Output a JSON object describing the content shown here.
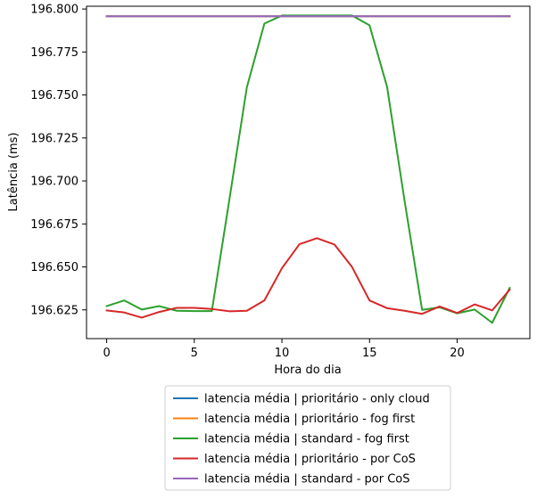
{
  "chart_data": {
    "type": "line",
    "title": "",
    "xlabel": "Hora do dia",
    "ylabel": "Latência (ms)",
    "xlim": [
      -1.15,
      24.15
    ],
    "ylim": [
      196.6083,
      196.8016
    ],
    "xticks": [
      0,
      5,
      10,
      15,
      20
    ],
    "yticks": [
      196.625,
      196.65,
      196.675,
      196.7,
      196.725,
      196.75,
      196.775,
      196.8
    ],
    "ytick_labels": [
      "196.625",
      "196.650",
      "196.675",
      "196.700",
      "196.725",
      "196.750",
      "196.775",
      "196.800"
    ],
    "grid": false,
    "legend_placement": "below",
    "x": [
      0,
      1,
      2,
      3,
      4,
      5,
      6,
      7,
      8,
      9,
      10,
      11,
      12,
      13,
      14,
      15,
      16,
      17,
      18,
      19,
      20,
      21,
      22,
      23
    ],
    "series": [
      {
        "name": "latencia média | prioritário - only cloud",
        "color": "#1f77b4",
        "values": [
          196.7958,
          196.7958,
          196.7958,
          196.7958,
          196.7958,
          196.7958,
          196.7958,
          196.7958,
          196.7958,
          196.7958,
          196.7958,
          196.7958,
          196.7958,
          196.7958,
          196.7958,
          196.7958,
          196.7958,
          196.7958,
          196.7958,
          196.7958,
          196.7958,
          196.7958,
          196.7958,
          196.7958
        ]
      },
      {
        "name": "latencia média | prioritário - fog first",
        "color": "#ff7f0e",
        "values": [
          196.7958,
          196.7958,
          196.7958,
          196.7958,
          196.7958,
          196.7958,
          196.7958,
          196.7958,
          196.7958,
          196.7958,
          196.7958,
          196.7958,
          196.7958,
          196.7958,
          196.7958,
          196.7958,
          196.7958,
          196.7958,
          196.7958,
          196.7958,
          196.7958,
          196.7958,
          196.7958,
          196.7958
        ]
      },
      {
        "name": "latencia média | standard - fog first",
        "color": "#2ca02c",
        "values": [
          196.6272,
          196.6305,
          196.6252,
          196.6272,
          196.6245,
          196.6243,
          196.6243,
          196.689,
          196.7545,
          196.7915,
          196.7962,
          196.7962,
          196.7962,
          196.7962,
          196.7962,
          196.7905,
          196.7548,
          196.6885,
          196.625,
          196.6265,
          196.623,
          196.6252,
          196.6175,
          196.6378
        ]
      },
      {
        "name": "latencia média | prioritário - por CoS",
        "color": "#d62728",
        "values": [
          196.6247,
          196.6235,
          196.6205,
          196.6238,
          196.6262,
          196.6262,
          196.6255,
          196.6242,
          196.6245,
          196.6305,
          196.6492,
          196.6632,
          196.6667,
          196.663,
          196.65,
          196.6305,
          196.626,
          196.6245,
          196.6227,
          196.627,
          196.6232,
          196.6282,
          196.6247,
          196.6368
        ]
      },
      {
        "name": "latencia média | standard - por CoS",
        "color": "#9467bd",
        "values": [
          196.7958,
          196.7958,
          196.7958,
          196.7958,
          196.7958,
          196.7958,
          196.7958,
          196.7958,
          196.7958,
          196.7958,
          196.7958,
          196.7958,
          196.7958,
          196.7958,
          196.7958,
          196.7958,
          196.7958,
          196.7958,
          196.7958,
          196.7958,
          196.7958,
          196.7958,
          196.7958,
          196.7958
        ]
      }
    ]
  }
}
